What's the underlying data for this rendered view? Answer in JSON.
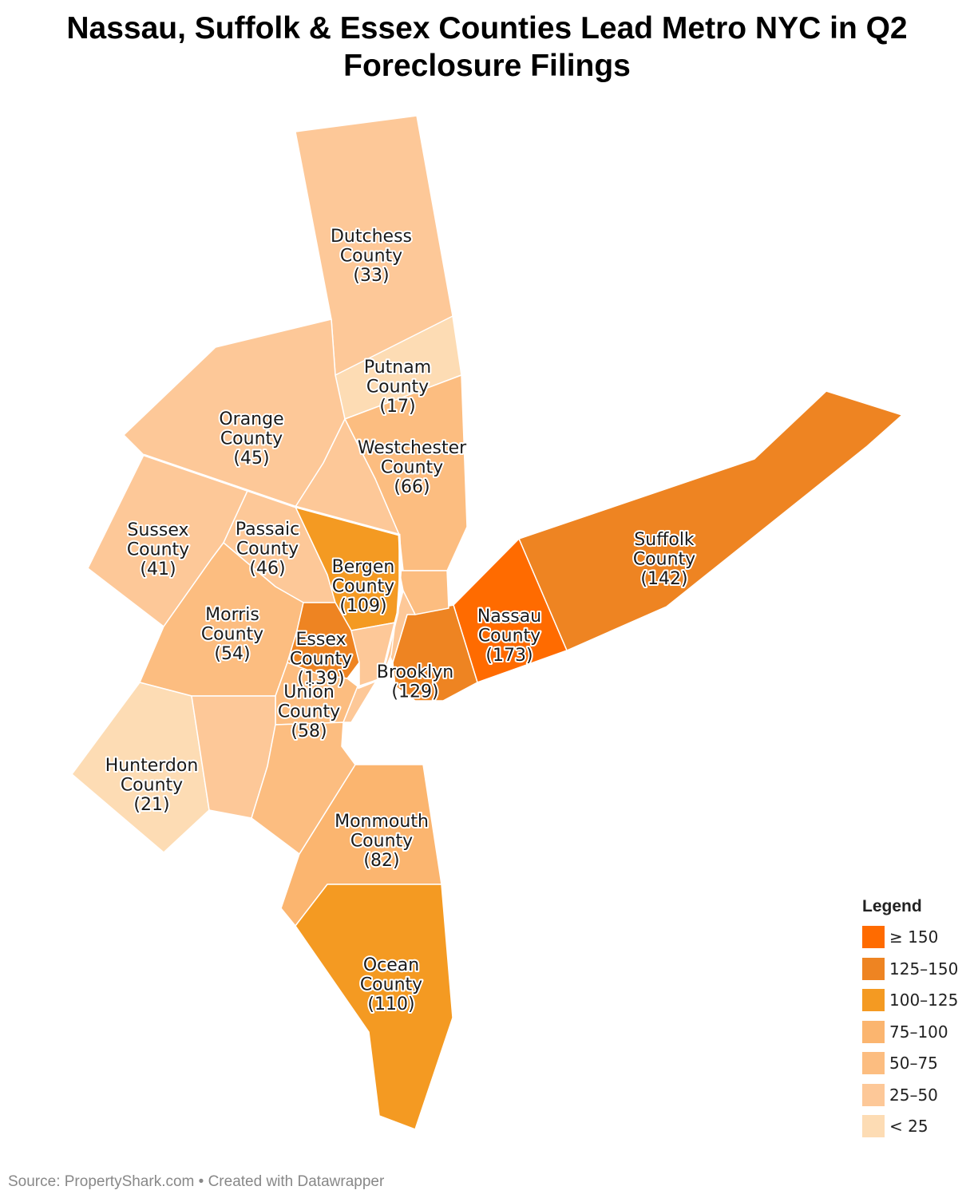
{
  "title_lines": [
    "Nassau, Suffolk & Essex Counties Lead Metro NYC in Q2",
    "Foreclosure Filings"
  ],
  "colors": {
    "ge150": "#ff6b00",
    "c125_150": "#ee8422",
    "c100_125": "#f49a22",
    "c75_100": "#fbb56f",
    "c50_75": "#fcbd80",
    "c25_50": "#fdc898",
    "lt25": "#fddcb4"
  },
  "regions": [
    {
      "id": "dutchess",
      "label_lines": [
        "Dutchess",
        "County",
        "(33)"
      ],
      "value": 33,
      "bin": "25–50"
    },
    {
      "id": "putnam",
      "label_lines": [
        "Putnam",
        "County",
        "(17)"
      ],
      "value": 17,
      "bin": "< 25"
    },
    {
      "id": "orange",
      "label_lines": [
        "Orange",
        "County",
        "(45)"
      ],
      "value": 45,
      "bin": "25–50"
    },
    {
      "id": "westchester",
      "label_lines": [
        "Westchester",
        "County",
        "(66)"
      ],
      "value": 66,
      "bin": "50–75"
    },
    {
      "id": "sussex",
      "label_lines": [
        "Sussex",
        "County",
        "(41)"
      ],
      "value": 41,
      "bin": "25–50"
    },
    {
      "id": "passaic",
      "label_lines": [
        "Passaic",
        "County",
        "(46)"
      ],
      "value": 46,
      "bin": "25–50"
    },
    {
      "id": "bergen",
      "label_lines": [
        "Bergen",
        "County",
        "(109)"
      ],
      "value": 109,
      "bin": "100–125"
    },
    {
      "id": "suffolk",
      "label_lines": [
        "Suffolk",
        "County",
        "(142)"
      ],
      "value": 142,
      "bin": "125–150"
    },
    {
      "id": "nassau",
      "label_lines": [
        "Nassau",
        "County",
        "(173)"
      ],
      "value": 173,
      "bin": "≥ 150"
    },
    {
      "id": "morris",
      "label_lines": [
        "Morris",
        "County",
        "(54)"
      ],
      "value": 54,
      "bin": "50–75"
    },
    {
      "id": "essex",
      "label_lines": [
        "Essex",
        "County",
        "(139)"
      ],
      "value": 139,
      "bin": "125–150"
    },
    {
      "id": "brooklyn",
      "label_lines": [
        "Brooklyn",
        "(129)"
      ],
      "value": 129,
      "bin": "125–150"
    },
    {
      "id": "union",
      "label_lines": [
        "Union",
        "County",
        "(58)"
      ],
      "value": 58,
      "bin": "50–75"
    },
    {
      "id": "hunterdon",
      "label_lines": [
        "Hunterdon",
        "County",
        "(21)"
      ],
      "value": 21,
      "bin": "< 25"
    },
    {
      "id": "monmouth",
      "label_lines": [
        "Monmouth",
        "County",
        "(82)"
      ],
      "value": 82,
      "bin": "75–100"
    },
    {
      "id": "ocean",
      "label_lines": [
        "Ocean",
        "County",
        "(110)"
      ],
      "value": 110,
      "bin": "100–125"
    }
  ],
  "legend": {
    "title": "Legend",
    "items": [
      {
        "label": "≥ 150",
        "color": "#ff6b00"
      },
      {
        "label": "125–150",
        "color": "#ee8422"
      },
      {
        "label": "100–125",
        "color": "#f49a22"
      },
      {
        "label": "75–100",
        "color": "#fbb56f"
      },
      {
        "label": "50–75",
        "color": "#fcbd80"
      },
      {
        "label": "25–50",
        "color": "#fdc898"
      },
      {
        "label": "< 25",
        "color": "#fddcb4"
      }
    ]
  },
  "source": "Source: PropertyShark.com • Created with Datawrapper"
}
